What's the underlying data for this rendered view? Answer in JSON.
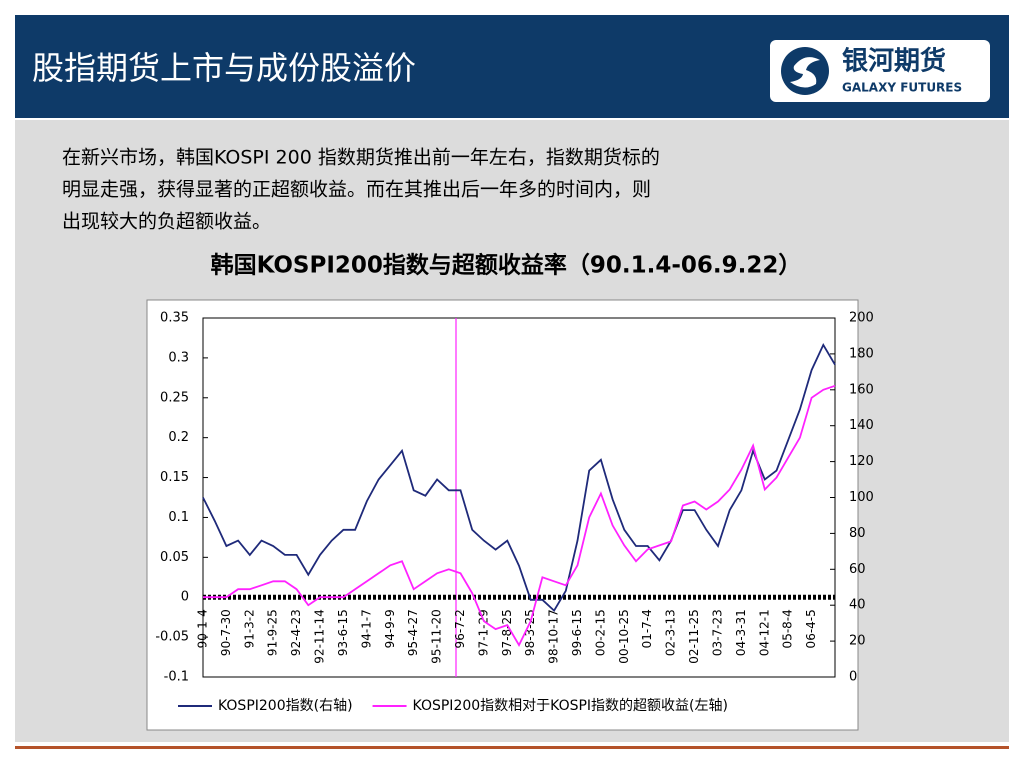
{
  "header": {
    "title": "股指期货上市与成份股溢价",
    "logo_text": "银河期货",
    "logo_subtext": "GALAXY FUTURES"
  },
  "body": {
    "lines": [
      "在新兴市场，韩国KOSPI 200 指数期货推出前一年左右，指数期货标的",
      "明显走强，获得显著的正超额收益。而在其推出后一年多的时间内，则",
      "出现较大的负超额收益。"
    ]
  },
  "chart_data": {
    "type": "line",
    "title": "韩国KOSPI200指数与超额收益率（90.1.4-06.9.22）",
    "categories": [
      "90-1-4",
      null,
      "90-7-30",
      null,
      "91-3-2",
      null,
      "91-9-25",
      null,
      "92-4-23",
      null,
      "92-11-14",
      null,
      "93-6-15",
      null,
      "94-1-7",
      null,
      "94-9-9",
      null,
      "95-4-27",
      null,
      "95-11-20",
      null,
      "96-7-2",
      null,
      "97-1-29",
      null,
      "97-8-25",
      null,
      "98-3-25",
      null,
      "98-10-17",
      null,
      "99-6-15",
      null,
      "00-2-15",
      null,
      "00-10-25",
      null,
      "01-7-4",
      null,
      "02-3-13",
      null,
      "02-11-25",
      null,
      "03-7-23",
      null,
      "04-3-31",
      null,
      "04-12-1",
      null,
      "05-8-4",
      null,
      "06-4-5",
      null,
      null
    ],
    "series": [
      {
        "name": "KOSPI200指数(右轴)",
        "color": "#1f2a7a",
        "axis": "y2",
        "values": [
          100,
          87,
          73,
          76,
          68,
          76,
          73,
          68,
          68,
          57,
          68,
          76,
          82,
          82,
          98,
          110,
          118,
          126,
          104,
          101,
          110,
          104,
          104,
          82,
          76,
          71,
          76,
          62,
          43,
          43,
          37,
          48,
          76,
          115,
          121,
          99,
          82,
          73,
          73,
          65,
          76,
          93,
          93,
          82,
          73,
          93,
          104,
          126,
          110,
          115,
          132,
          149,
          171,
          185,
          174
        ]
      },
      {
        "name": "KOSPI200指数相对于KOSPI指数的超额收益(左轴)",
        "color": "#ff22ff",
        "values": [
          0,
          0,
          0,
          0.01,
          0.01,
          0.015,
          0.02,
          0.02,
          0.01,
          -0.01,
          0,
          0,
          0,
          0.01,
          0.02,
          0.03,
          0.04,
          0.045,
          0.01,
          0.02,
          0.03,
          0.035,
          0.03,
          0.005,
          -0.03,
          -0.04,
          -0.035,
          -0.06,
          -0.03,
          0.025,
          0.02,
          0.015,
          0.04,
          0.1,
          0.13,
          0.09,
          0.065,
          0.045,
          0.06,
          0.065,
          0.07,
          0.115,
          0.12,
          0.11,
          0.12,
          0.135,
          0.16,
          0.19,
          0.135,
          0.15,
          0.175,
          0.2,
          0.25,
          0.26,
          0.265
        ]
      }
    ],
    "ylim": [
      -0.1,
      0.35
    ],
    "yticks": [
      -0.1,
      -0.05,
      0,
      0.05,
      0.1,
      0.15,
      0.2,
      0.25,
      0.3,
      0.35
    ],
    "y2lim": [
      0,
      200
    ],
    "y2ticks": [
      0,
      20,
      40,
      60,
      80,
      100,
      120,
      140,
      160,
      180,
      200
    ],
    "legend": "bottom"
  }
}
